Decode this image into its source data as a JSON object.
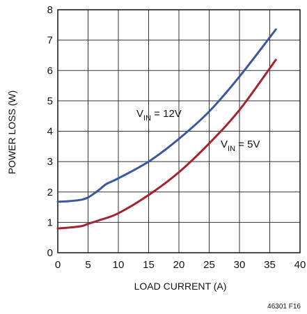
{
  "chart_data": {
    "type": "line",
    "title": "",
    "xlabel": "LOAD CURRENT (A)",
    "ylabel": "POWER LOSS (W)",
    "xlim": [
      0,
      40
    ],
    "ylim": [
      0,
      8
    ],
    "xticks": [
      0,
      5,
      10,
      15,
      20,
      25,
      30,
      35,
      40
    ],
    "yticks": [
      0,
      1,
      2,
      3,
      4,
      5,
      6,
      7,
      8
    ],
    "grid": true,
    "legend": "none",
    "series": [
      {
        "label_main": "V",
        "label_sub": "IN",
        "label_rest": " = 12V",
        "color": "#3a57a0",
        "x": [
          0,
          2,
          4,
          5,
          6,
          7,
          8,
          10,
          15,
          20,
          25,
          30,
          36
        ],
        "y": [
          1.68,
          1.7,
          1.75,
          1.82,
          1.95,
          2.1,
          2.26,
          2.45,
          3.0,
          3.75,
          4.65,
          5.8,
          7.35
        ]
      },
      {
        "label_main": "V",
        "label_sub": "IN",
        "label_rest": " = 5V",
        "color": "#a3242e",
        "x": [
          0,
          2,
          4,
          5,
          7,
          10,
          15,
          20,
          25,
          30,
          36
        ],
        "y": [
          0.8,
          0.83,
          0.88,
          0.95,
          1.08,
          1.3,
          1.9,
          2.65,
          3.6,
          4.7,
          6.35
        ]
      }
    ],
    "figure_id": "46301 F16"
  }
}
